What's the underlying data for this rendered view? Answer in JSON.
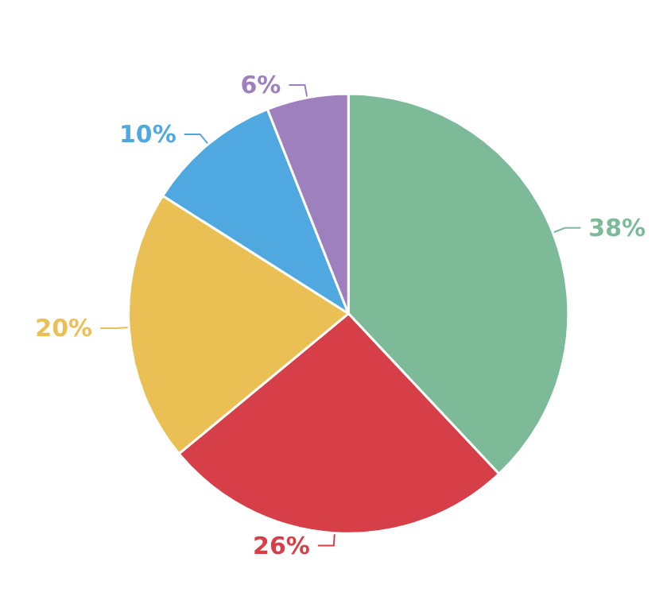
{
  "chart_data": {
    "type": "pie",
    "categories": [
      null,
      null,
      null,
      null,
      null
    ],
    "values": [
      38,
      26,
      20,
      10,
      6
    ],
    "colors": [
      "#7dba97",
      "#d63e48",
      "#eabf54",
      "#4fa8df",
      "#9d80bd"
    ],
    "value_labels": [
      "38%",
      "26%",
      "20%",
      "10%",
      "6%"
    ]
  }
}
